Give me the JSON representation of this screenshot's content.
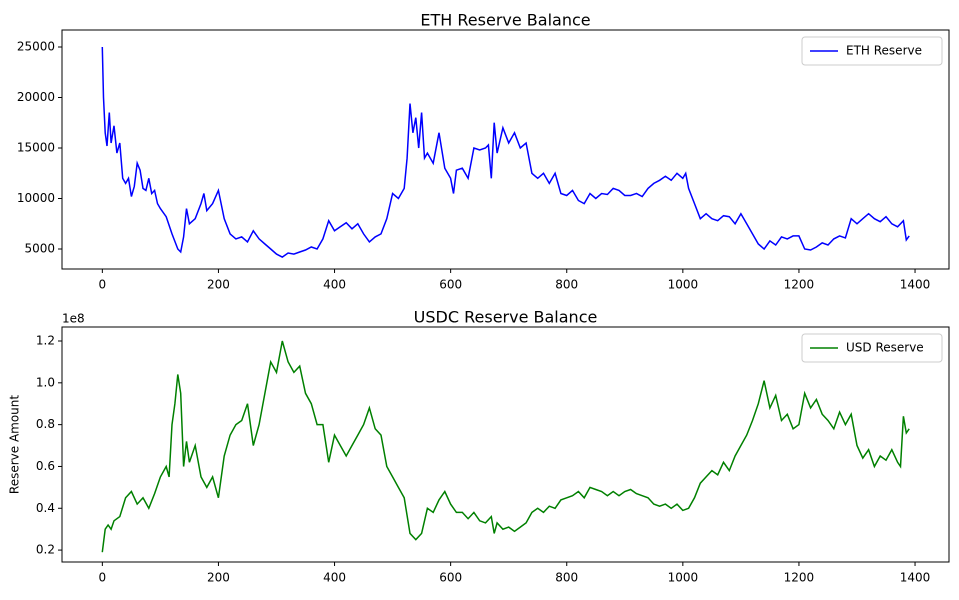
{
  "chart_data": [
    {
      "type": "line",
      "title": "ETH Reserve Balance",
      "legend": "upper right",
      "xlim": [
        -69.5,
        1458.5
      ],
      "ylim": [
        3020,
        26683
      ],
      "xticks": [
        0,
        200,
        400,
        600,
        800,
        1000,
        1200,
        1400
      ],
      "yticks": [
        5000,
        10000,
        15000,
        20000,
        25000
      ],
      "x": [
        0,
        2,
        5,
        8,
        12,
        15,
        20,
        25,
        30,
        35,
        40,
        45,
        50,
        55,
        60,
        65,
        70,
        75,
        80,
        85,
        90,
        95,
        100,
        110,
        120,
        130,
        135,
        140,
        145,
        150,
        160,
        170,
        175,
        180,
        190,
        200,
        210,
        220,
        230,
        240,
        250,
        260,
        270,
        280,
        290,
        300,
        310,
        320,
        330,
        340,
        350,
        360,
        370,
        380,
        390,
        400,
        410,
        420,
        430,
        440,
        450,
        460,
        470,
        480,
        490,
        500,
        510,
        520,
        525,
        530,
        535,
        540,
        545,
        550,
        555,
        560,
        570,
        580,
        590,
        600,
        605,
        610,
        620,
        630,
        640,
        650,
        660,
        665,
        670,
        675,
        680,
        690,
        700,
        710,
        720,
        730,
        740,
        750,
        760,
        770,
        780,
        790,
        800,
        810,
        820,
        830,
        840,
        850,
        860,
        870,
        880,
        890,
        900,
        910,
        920,
        930,
        940,
        950,
        960,
        970,
        980,
        990,
        1000,
        1005,
        1010,
        1020,
        1030,
        1040,
        1050,
        1060,
        1070,
        1080,
        1090,
        1100,
        1110,
        1120,
        1130,
        1140,
        1150,
        1160,
        1170,
        1180,
        1190,
        1200,
        1210,
        1220,
        1230,
        1240,
        1250,
        1260,
        1270,
        1280,
        1290,
        1300,
        1310,
        1320,
        1330,
        1340,
        1350,
        1360,
        1370,
        1380,
        1385,
        1390
      ],
      "series": [
        {
          "name": "ETH Reserve",
          "color": "#0000ff",
          "values": [
            25000,
            20000,
            16500,
            15200,
            18500,
            15500,
            17200,
            14500,
            15500,
            12000,
            11500,
            12000,
            10200,
            11200,
            13500,
            12800,
            11000,
            10800,
            12000,
            10500,
            10800,
            9500,
            9000,
            8200,
            6500,
            5000,
            4700,
            6200,
            9000,
            7500,
            8000,
            9500,
            10500,
            8800,
            9500,
            10800,
            8000,
            6500,
            6000,
            6200,
            5700,
            6800,
            6000,
            5500,
            5000,
            4500,
            4200,
            4600,
            4500,
            4700,
            4900,
            5200,
            5000,
            6000,
            7800,
            6800,
            7200,
            7600,
            7000,
            7500,
            6500,
            5700,
            6200,
            6500,
            8000,
            10500,
            10000,
            11000,
            14000,
            19400,
            16500,
            18000,
            15000,
            18500,
            14000,
            14500,
            13500,
            16500,
            13000,
            12000,
            10500,
            12800,
            13000,
            12000,
            15000,
            14800,
            15000,
            15300,
            12000,
            17500,
            14500,
            17000,
            15500,
            16500,
            15000,
            15500,
            12500,
            12000,
            12500,
            11500,
            12500,
            10500,
            10300,
            10800,
            9800,
            9500,
            10500,
            10000,
            10500,
            10400,
            11000,
            10800,
            10300,
            10300,
            10500,
            10200,
            11000,
            11500,
            11800,
            12200,
            11800,
            12500,
            12000,
            12500,
            11000,
            9500,
            8000,
            8500,
            8000,
            7800,
            8300,
            8200,
            7500,
            8500,
            7500,
            6500,
            5500,
            5000,
            5800,
            5400,
            6200,
            6000,
            6300,
            6300,
            5000,
            4900,
            5200,
            5600,
            5400,
            6000,
            6300,
            6100,
            8000,
            7500,
            8000,
            8500,
            8000,
            7700,
            8200,
            7500,
            7200,
            7800,
            5900,
            6300
          ]
        }
      ]
    },
    {
      "type": "line",
      "title": "USDC Reserve Balance",
      "ylabel": "Reserve Amount",
      "offset_text": "1e8",
      "legend": "upper right",
      "xlim": [
        -69.5,
        1458.5
      ],
      "ylim": [
        0.143,
        1.267
      ],
      "xticks": [
        0,
        200,
        400,
        600,
        800,
        1000,
        1200,
        1400
      ],
      "yticks": [
        0.2,
        0.4,
        0.6,
        0.8,
        {
          "value": 1,
          "label": "1.0"
        },
        1.2
      ],
      "x": [
        0,
        5,
        10,
        15,
        20,
        30,
        40,
        50,
        60,
        70,
        80,
        90,
        100,
        110,
        115,
        120,
        125,
        130,
        135,
        140,
        145,
        150,
        160,
        170,
        180,
        190,
        200,
        210,
        220,
        230,
        240,
        250,
        260,
        270,
        280,
        290,
        300,
        310,
        320,
        330,
        340,
        350,
        360,
        370,
        380,
        390,
        400,
        410,
        420,
        430,
        440,
        450,
        460,
        470,
        480,
        490,
        500,
        510,
        520,
        530,
        540,
        550,
        560,
        570,
        580,
        590,
        600,
        610,
        620,
        630,
        640,
        650,
        660,
        670,
        675,
        680,
        690,
        700,
        710,
        720,
        730,
        740,
        750,
        760,
        770,
        780,
        790,
        800,
        810,
        820,
        830,
        840,
        850,
        860,
        870,
        880,
        890,
        900,
        910,
        920,
        930,
        940,
        950,
        960,
        970,
        980,
        990,
        1000,
        1010,
        1020,
        1030,
        1040,
        1050,
        1060,
        1070,
        1080,
        1090,
        1100,
        1110,
        1120,
        1130,
        1140,
        1150,
        1160,
        1170,
        1180,
        1190,
        1200,
        1210,
        1220,
        1230,
        1240,
        1250,
        1260,
        1270,
        1280,
        1290,
        1300,
        1310,
        1320,
        1330,
        1340,
        1350,
        1360,
        1370,
        1375,
        1380,
        1385,
        1390
      ],
      "series": [
        {
          "name": "USD Reserve",
          "color": "#008000",
          "values": [
            0.19,
            0.3,
            0.32,
            0.3,
            0.34,
            0.36,
            0.45,
            0.48,
            0.42,
            0.45,
            0.4,
            0.47,
            0.55,
            0.6,
            0.55,
            0.8,
            0.9,
            1.04,
            0.95,
            0.6,
            0.72,
            0.62,
            0.7,
            0.55,
            0.5,
            0.55,
            0.45,
            0.65,
            0.75,
            0.8,
            0.82,
            0.9,
            0.7,
            0.8,
            0.95,
            1.1,
            1.05,
            1.2,
            1.1,
            1.05,
            1.08,
            0.95,
            0.9,
            0.8,
            0.8,
            0.62,
            0.75,
            0.7,
            0.65,
            0.7,
            0.75,
            0.8,
            0.88,
            0.78,
            0.75,
            0.6,
            0.55,
            0.5,
            0.45,
            0.28,
            0.25,
            0.28,
            0.4,
            0.38,
            0.44,
            0.48,
            0.42,
            0.38,
            0.38,
            0.35,
            0.38,
            0.34,
            0.33,
            0.36,
            0.28,
            0.33,
            0.3,
            0.31,
            0.29,
            0.31,
            0.33,
            0.38,
            0.4,
            0.38,
            0.41,
            0.4,
            0.44,
            0.45,
            0.46,
            0.48,
            0.45,
            0.5,
            0.49,
            0.48,
            0.46,
            0.48,
            0.46,
            0.48,
            0.49,
            0.47,
            0.46,
            0.45,
            0.42,
            0.41,
            0.42,
            0.4,
            0.42,
            0.39,
            0.4,
            0.45,
            0.52,
            0.55,
            0.58,
            0.56,
            0.62,
            0.58,
            0.65,
            0.7,
            0.75,
            0.82,
            0.9,
            1.01,
            0.88,
            0.94,
            0.82,
            0.85,
            0.78,
            0.8,
            0.95,
            0.88,
            0.92,
            0.85,
            0.82,
            0.78,
            0.86,
            0.8,
            0.85,
            0.7,
            0.64,
            0.68,
            0.6,
            0.65,
            0.63,
            0.68,
            0.62,
            0.6,
            0.84,
            0.76,
            0.78
          ]
        }
      ]
    }
  ]
}
